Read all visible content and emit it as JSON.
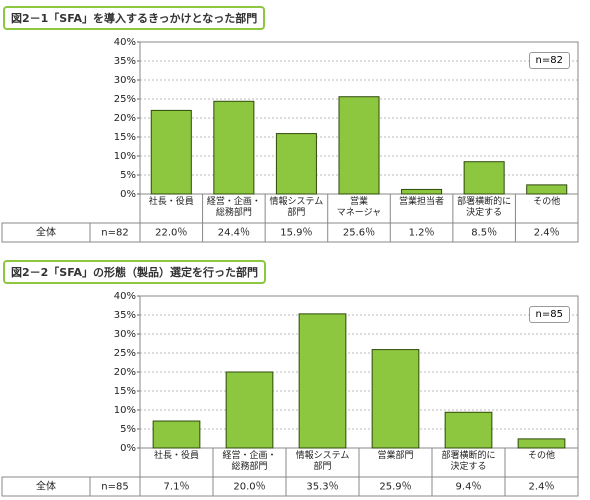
{
  "chart_data": [
    {
      "type": "bar",
      "title": "図2－1「SFA」を導入するきっかけとなった部門",
      "categories": [
        "社長・役員",
        "経営・企画・\n総務部門",
        "情報システム\n部門",
        "営業\nマネージャ",
        "営業担当者",
        "部署横断的に\n決定する",
        "その他"
      ],
      "values": [
        22.0,
        24.4,
        15.9,
        25.6,
        1.2,
        8.5,
        2.4
      ],
      "value_labels": [
        "22.0％",
        "24.4％",
        "15.9％",
        "25.6％",
        "1.2％",
        "8.5％",
        "2.4％"
      ],
      "color": "#8dc63f",
      "ylim": [
        0,
        40
      ],
      "yticks": [
        {
          "value": 0,
          "label": "0%"
        },
        {
          "value": 5,
          "label": "5%"
        },
        {
          "value": 10,
          "label": "10%"
        },
        {
          "value": 15,
          "label": "15%"
        },
        {
          "value": 20,
          "label": "20%"
        },
        {
          "value": 25,
          "label": "25%"
        },
        {
          "value": 30,
          "label": "30%"
        },
        {
          "value": 35,
          "label": "35%"
        },
        {
          "value": 40,
          "label": "40%"
        }
      ],
      "grid": true,
      "n_label": "n=82",
      "row_label": "全体"
    },
    {
      "type": "bar",
      "title": "図2－2「SFA」の形態（製品）選定を行った部門",
      "categories": [
        "社長・役員",
        "経営・企画・\n総務部門",
        "情報システム\n部門",
        "営業部門",
        "部署横断的に\n決定する",
        "その他"
      ],
      "values": [
        7.1,
        20.0,
        35.3,
        25.9,
        9.4,
        2.4
      ],
      "value_labels": [
        "7.1％",
        "20.0％",
        "35.3％",
        "25.9％",
        "9.4％",
        "2.4％"
      ],
      "color": "#8dc63f",
      "ylim": [
        0,
        40
      ],
      "yticks": [
        {
          "value": 0,
          "label": "0%"
        },
        {
          "value": 5,
          "label": "5%"
        },
        {
          "value": 10,
          "label": "10%"
        },
        {
          "value": 15,
          "label": "15%"
        },
        {
          "value": 20,
          "label": "20%"
        },
        {
          "value": 25,
          "label": "25%"
        },
        {
          "value": 30,
          "label": "30%"
        },
        {
          "value": 35,
          "label": "35%"
        },
        {
          "value": 40,
          "label": "40%"
        }
      ],
      "grid": true,
      "n_label": "n=85",
      "row_label": "全体"
    }
  ]
}
